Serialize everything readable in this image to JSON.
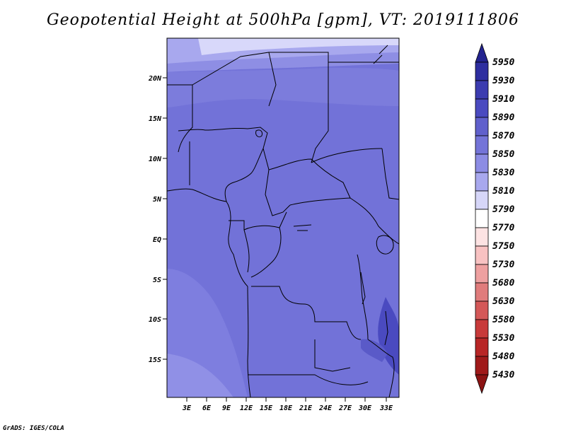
{
  "title": "Geopotential Height at 500hPa [gpm], VT: 2019111806",
  "credit": "GrADS: IGES/COLA",
  "map": {
    "lat_labels": [
      "20N",
      "15N",
      "10N",
      "5N",
      "EQ",
      "5S",
      "10S",
      "15S"
    ],
    "lon_labels": [
      "3E",
      "6E",
      "9E",
      "12E",
      "15E",
      "18E",
      "21E",
      "24E",
      "27E",
      "30E",
      "33E"
    ]
  },
  "colorbar": {
    "levels": [
      "5950",
      "5930",
      "5910",
      "5890",
      "5870",
      "5850",
      "5830",
      "5810",
      "5790",
      "5770",
      "5750",
      "5730",
      "5680",
      "5630",
      "5580",
      "5530",
      "5480",
      "5430"
    ],
    "colors": [
      "#23238f",
      "#2e2ea0",
      "#3c3cb0",
      "#4a4ac0",
      "#6060cc",
      "#7474d8",
      "#8c8ce4",
      "#a8a8ee",
      "#d6d6f8",
      "#ffffff",
      "#fde3e3",
      "#f8c2c2",
      "#eea0a0",
      "#e07c7c",
      "#d45858",
      "#c83a3a",
      "#b82626",
      "#a01a1a",
      "#8c1414"
    ]
  }
}
